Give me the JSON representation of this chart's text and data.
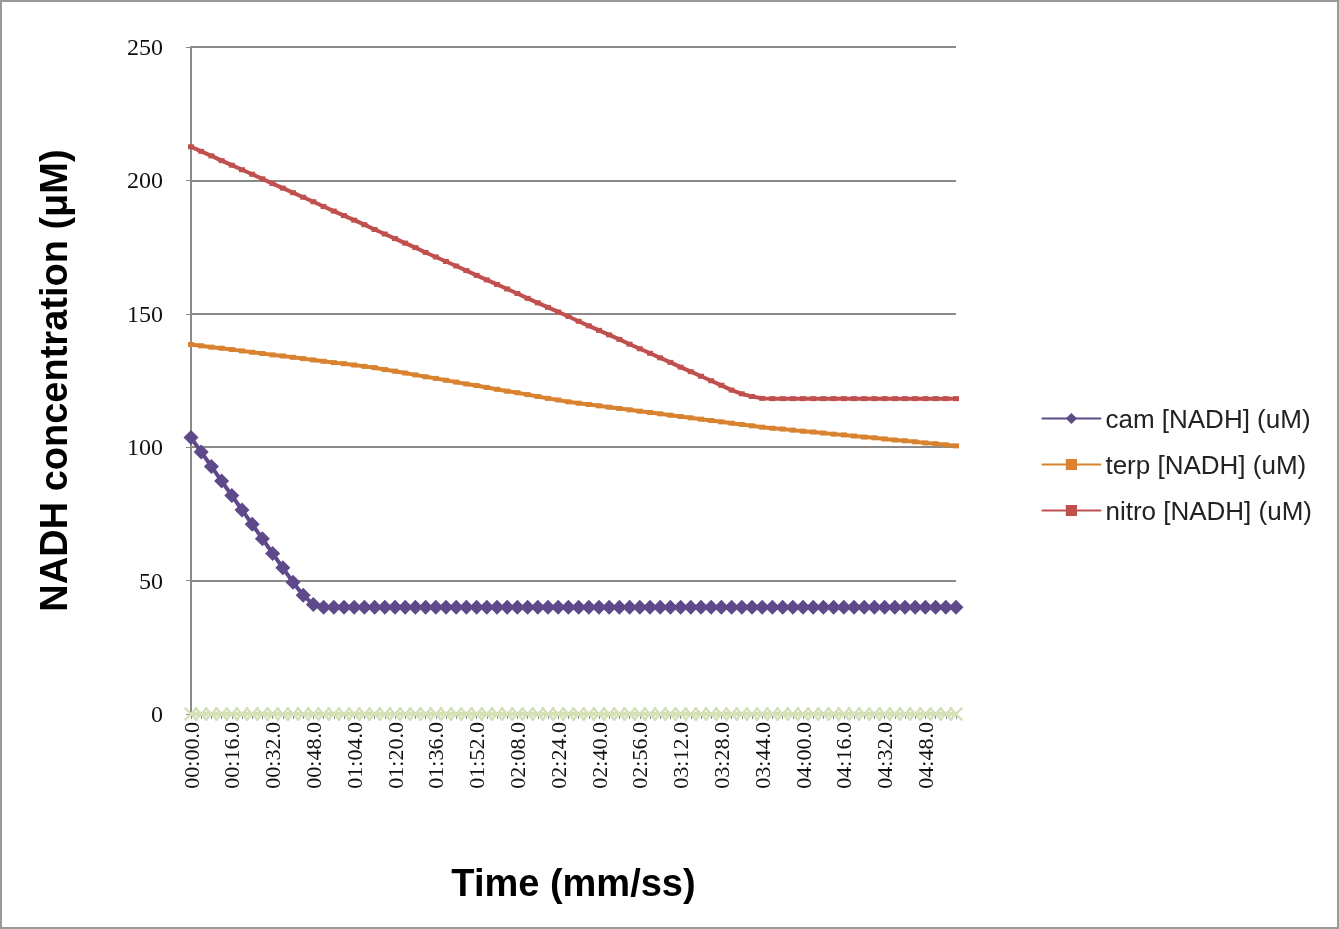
{
  "chart_data": {
    "type": "line",
    "xlabel": "Time (mm/ss)",
    "ylabel": "NADH concentration (μM)",
    "categories": [
      "00:00.0",
      null,
      null,
      null,
      "00:16.0",
      null,
      null,
      null,
      "00:32.0",
      null,
      null,
      null,
      "00:48.0",
      null,
      null,
      null,
      "01:04.0",
      null,
      null,
      null,
      "01:20.0",
      null,
      null,
      null,
      "01:36.0",
      null,
      null,
      null,
      "01:52.0",
      null,
      null,
      null,
      "02:08.0",
      null,
      null,
      null,
      "02:24.0",
      null,
      null,
      null,
      "02:40.0",
      null,
      null,
      null,
      "02:56.0",
      null,
      null,
      null,
      "03:12.0",
      null,
      null,
      null,
      "03:28.0",
      null,
      null,
      null,
      "03:44.0",
      null,
      null,
      null,
      "04:00.0",
      null,
      null,
      null,
      "04:16.0",
      null,
      null,
      null,
      "04:32.0",
      null,
      null,
      null,
      "04:48.0",
      null,
      null,
      null
    ],
    "ylim": [
      0,
      250
    ],
    "yticks": [
      0,
      50,
      100,
      150,
      200,
      250
    ],
    "grid": "y",
    "legend": "right",
    "line_style": "solid",
    "series": [
      {
        "color": "#bcd6e0",
        "marker": "cross",
        "values": [
          0,
          0,
          0,
          0,
          0,
          0,
          0,
          0,
          0,
          0,
          0,
          0,
          0,
          0,
          0,
          0,
          0,
          0,
          0,
          0,
          0,
          0,
          0,
          0,
          0,
          0,
          0,
          0,
          0,
          0,
          0,
          0,
          0,
          0,
          0,
          0,
          0,
          0,
          0,
          0,
          0,
          0,
          0,
          0,
          0,
          0,
          0,
          0,
          0,
          0,
          0,
          0,
          0,
          0,
          0,
          0,
          0,
          0,
          0,
          0,
          0,
          0,
          0,
          0,
          0,
          0,
          0,
          0,
          0,
          0,
          0,
          0,
          0,
          0,
          0,
          0
        ]
      },
      {
        "color": "#d6e2b4",
        "marker": "cross",
        "values": [
          0,
          0,
          0,
          0,
          0,
          0,
          0,
          0,
          0,
          0,
          0,
          0,
          0,
          0,
          0,
          0,
          0,
          0,
          0,
          0,
          0,
          0,
          0,
          0,
          0,
          0,
          0,
          0,
          0,
          0,
          0,
          0,
          0,
          0,
          0,
          0,
          0,
          0,
          0,
          0,
          0,
          0,
          0,
          0,
          0,
          0,
          0,
          0,
          0,
          0,
          0,
          0,
          0,
          0,
          0,
          0,
          0,
          0,
          0,
          0,
          0,
          0,
          0,
          0,
          0,
          0,
          0,
          0,
          0,
          0,
          0,
          0,
          0,
          0,
          0,
          0
        ]
      },
      {
        "name": "cam [NADH] (uM)",
        "color": "#5e4a8a",
        "marker": "diamond",
        "values": [
          103.6,
          98.2,
          92.8,
          87.3,
          81.9,
          76.5,
          71.1,
          65.7,
          60.2,
          54.8,
          49.4,
          44.5,
          41,
          40,
          40,
          40,
          40,
          40,
          40,
          40,
          40,
          40,
          40,
          40,
          40,
          40,
          40,
          40,
          40,
          40,
          40,
          40,
          40,
          40,
          40,
          40,
          40,
          40,
          40,
          40,
          40,
          40,
          40,
          40,
          40,
          40,
          40,
          40,
          40,
          40,
          40,
          40,
          40,
          40,
          40,
          40,
          40,
          40,
          40,
          40,
          40,
          40,
          40,
          40,
          40,
          40,
          40,
          40,
          40,
          40,
          40,
          40,
          40,
          40,
          40,
          40
        ]
      },
      {
        "name": "terp [NADH] (uM)",
        "color": "#d9822f",
        "marker": "square",
        "values": [
          138.5,
          138.0,
          137.5,
          137.1,
          136.6,
          136.1,
          135.6,
          135.1,
          134.6,
          134.2,
          133.7,
          133.2,
          132.7,
          132.2,
          131.7,
          131.3,
          130.8,
          130.3,
          129.8,
          129.1,
          128.5,
          127.8,
          127.1,
          126.4,
          125.8,
          125.1,
          124.4,
          123.7,
          123.1,
          122.4,
          121.7,
          121.0,
          120.4,
          119.7,
          119.0,
          118.3,
          117.7,
          117.0,
          116.5,
          116.0,
          115.5,
          115.0,
          114.5,
          114.0,
          113.5,
          113.0,
          112.5,
          112.0,
          111.5,
          111.0,
          110.5,
          110.0,
          109.5,
          109.0,
          108.5,
          108.0,
          107.5,
          107.1,
          106.8,
          106.4,
          106.0,
          105.7,
          105.3,
          104.9,
          104.6,
          104.2,
          103.8,
          103.5,
          103.1,
          102.7,
          102.4,
          102.0,
          101.6,
          101.3,
          100.9,
          100.5
        ]
      },
      {
        "name": "nitro [NADH] (uM)",
        "color": "#c0504d",
        "marker": "square",
        "values": [
          212.6,
          210.9,
          209.2,
          207.4,
          205.7,
          204.0,
          202.3,
          200.6,
          198.8,
          197.1,
          195.4,
          193.7,
          192.0,
          190.2,
          188.5,
          186.8,
          185.1,
          183.4,
          181.6,
          179.9,
          178.2,
          176.5,
          174.8,
          173.0,
          171.3,
          169.6,
          167.9,
          166.2,
          164.4,
          162.7,
          161.0,
          159.3,
          157.6,
          155.8,
          154.1,
          152.4,
          150.7,
          149.0,
          147.2,
          145.5,
          143.8,
          142.1,
          140.4,
          138.6,
          136.9,
          135.2,
          133.5,
          131.8,
          130.0,
          128.3,
          126.6,
          124.9,
          123.2,
          121.4,
          120.0,
          119.0,
          118.3,
          118.2,
          118.2,
          118.2,
          118.2,
          118.2,
          118.2,
          118.2,
          118.2,
          118.2,
          118.2,
          118.2,
          118.2,
          118.2,
          118.2,
          118.2,
          118.2,
          118.2,
          118.2,
          118.2
        ]
      }
    ]
  }
}
